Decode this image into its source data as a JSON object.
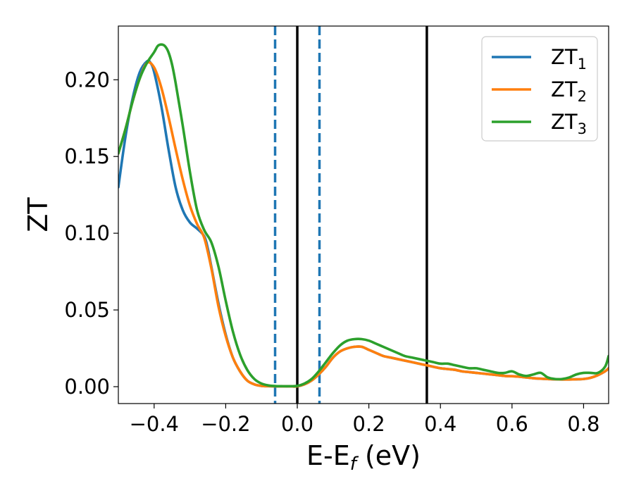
{
  "chart_data": {
    "type": "line",
    "xlabel": "E-E",
    "xlabel_sub": "f",
    "xlabel_unit": " (eV)",
    "ylabel": "ZT",
    "xlim": [
      -0.5,
      0.87
    ],
    "ylim": [
      -0.011,
      0.235
    ],
    "xticks": [
      -0.4,
      -0.2,
      0.0,
      0.2,
      0.4,
      0.6,
      0.8
    ],
    "xtick_labels": [
      "−0.4",
      "−0.2",
      "0.0",
      "0.2",
      "0.4",
      "0.6",
      "0.8"
    ],
    "yticks": [
      0.0,
      0.05,
      0.1,
      0.15,
      0.2
    ],
    "ytick_labels": [
      "0.00",
      "0.05",
      "0.10",
      "0.15",
      "0.20"
    ],
    "grid": false,
    "legend_position": "top-right",
    "vlines": [
      {
        "x": -0.062,
        "style": "dashed",
        "color": "#1f77b4"
      },
      {
        "x": 0.0,
        "style": "solid",
        "color": "#000000"
      },
      {
        "x": 0.062,
        "style": "dashed",
        "color": "#1f77b4"
      },
      {
        "x": 0.362,
        "style": "solid",
        "color": "#000000"
      }
    ],
    "series": [
      {
        "name": "ZT",
        "sub": "1",
        "color": "#1f77b4",
        "x": [
          -0.5,
          -0.48,
          -0.46,
          -0.44,
          -0.42,
          -0.41,
          -0.4,
          -0.38,
          -0.36,
          -0.34,
          -0.32,
          -0.3,
          -0.28,
          -0.26,
          -0.25,
          -0.24,
          -0.22,
          -0.2,
          -0.18,
          -0.16,
          -0.14,
          -0.12,
          -0.1,
          -0.08,
          -0.06,
          -0.04,
          -0.02,
          0.0,
          0.02,
          0.04,
          0.06,
          0.08,
          0.1,
          0.12,
          0.14,
          0.16,
          0.18,
          0.2,
          0.22,
          0.24,
          0.26,
          0.28,
          0.3,
          0.32,
          0.34,
          0.36,
          0.38,
          0.4,
          0.42,
          0.44,
          0.46,
          0.48,
          0.5,
          0.52,
          0.54,
          0.56,
          0.58,
          0.6,
          0.62,
          0.64,
          0.66,
          0.68,
          0.7,
          0.72,
          0.74,
          0.76,
          0.78,
          0.8,
          0.82,
          0.84,
          0.86,
          0.87
        ],
        "values": [
          0.13,
          0.163,
          0.188,
          0.205,
          0.212,
          0.211,
          0.205,
          0.183,
          0.155,
          0.13,
          0.115,
          0.107,
          0.103,
          0.098,
          0.09,
          0.078,
          0.054,
          0.034,
          0.019,
          0.01,
          0.004,
          0.0015,
          0.0005,
          0.0003,
          0.0002,
          0.0002,
          0.0002,
          0.0002,
          0.0015,
          0.004,
          0.008,
          0.013,
          0.019,
          0.023,
          0.025,
          0.026,
          0.026,
          0.024,
          0.022,
          0.02,
          0.019,
          0.018,
          0.017,
          0.016,
          0.015,
          0.014,
          0.013,
          0.012,
          0.0115,
          0.011,
          0.01,
          0.0095,
          0.009,
          0.0085,
          0.008,
          0.0075,
          0.007,
          0.0068,
          0.0065,
          0.006,
          0.0055,
          0.0052,
          0.005,
          0.0048,
          0.0047,
          0.0047,
          0.0048,
          0.005,
          0.0058,
          0.0075,
          0.01,
          0.012
        ]
      },
      {
        "name": "ZT",
        "sub": "2",
        "color": "#ff7f0e",
        "x": [
          -0.5,
          -0.48,
          -0.46,
          -0.44,
          -0.42,
          -0.4,
          -0.38,
          -0.36,
          -0.34,
          -0.32,
          -0.3,
          -0.28,
          -0.26,
          -0.24,
          -0.22,
          -0.2,
          -0.18,
          -0.16,
          -0.14,
          -0.12,
          -0.1,
          -0.08,
          -0.06,
          -0.04,
          -0.02,
          0.0,
          0.02,
          0.04,
          0.06,
          0.08,
          0.1,
          0.12,
          0.14,
          0.16,
          0.18,
          0.2,
          0.22,
          0.24,
          0.26,
          0.28,
          0.3,
          0.32,
          0.34,
          0.36,
          0.38,
          0.4,
          0.42,
          0.44,
          0.46,
          0.48,
          0.5,
          0.52,
          0.54,
          0.56,
          0.58,
          0.6,
          0.62,
          0.64,
          0.66,
          0.68,
          0.7,
          0.72,
          0.74,
          0.76,
          0.78,
          0.8,
          0.82,
          0.84,
          0.86,
          0.87
        ],
        "values": [
          0.152,
          0.168,
          0.186,
          0.201,
          0.211,
          0.208,
          0.195,
          0.176,
          0.155,
          0.135,
          0.118,
          0.106,
          0.097,
          0.077,
          0.052,
          0.033,
          0.019,
          0.01,
          0.004,
          0.0015,
          0.0005,
          0.0003,
          0.0002,
          0.0002,
          0.0002,
          0.0002,
          0.0015,
          0.004,
          0.008,
          0.013,
          0.019,
          0.023,
          0.025,
          0.026,
          0.026,
          0.024,
          0.022,
          0.02,
          0.019,
          0.018,
          0.017,
          0.016,
          0.015,
          0.014,
          0.013,
          0.012,
          0.0115,
          0.011,
          0.01,
          0.0095,
          0.009,
          0.0085,
          0.008,
          0.0075,
          0.007,
          0.0068,
          0.0065,
          0.006,
          0.0055,
          0.0052,
          0.005,
          0.0048,
          0.0047,
          0.0047,
          0.0048,
          0.005,
          0.0058,
          0.0075,
          0.01,
          0.012
        ]
      },
      {
        "name": "ZT",
        "sub": "3",
        "color": "#2ca02c",
        "x": [
          -0.5,
          -0.48,
          -0.46,
          -0.44,
          -0.42,
          -0.4,
          -0.39,
          -0.38,
          -0.37,
          -0.36,
          -0.35,
          -0.34,
          -0.32,
          -0.3,
          -0.28,
          -0.26,
          -0.24,
          -0.22,
          -0.2,
          -0.18,
          -0.16,
          -0.14,
          -0.12,
          -0.1,
          -0.08,
          -0.06,
          -0.04,
          -0.02,
          0.0,
          0.02,
          0.04,
          0.06,
          0.08,
          0.1,
          0.12,
          0.14,
          0.16,
          0.18,
          0.2,
          0.22,
          0.24,
          0.26,
          0.28,
          0.3,
          0.32,
          0.34,
          0.36,
          0.38,
          0.4,
          0.42,
          0.44,
          0.46,
          0.48,
          0.5,
          0.52,
          0.54,
          0.56,
          0.58,
          0.6,
          0.62,
          0.64,
          0.66,
          0.68,
          0.7,
          0.72,
          0.74,
          0.76,
          0.78,
          0.8,
          0.82,
          0.84,
          0.86,
          0.87
        ],
        "values": [
          0.152,
          0.168,
          0.186,
          0.201,
          0.211,
          0.218,
          0.222,
          0.223,
          0.222,
          0.218,
          0.21,
          0.198,
          0.17,
          0.14,
          0.115,
          0.102,
          0.094,
          0.078,
          0.056,
          0.036,
          0.021,
          0.011,
          0.005,
          0.002,
          0.0008,
          0.0004,
          0.0003,
          0.0003,
          0.0005,
          0.002,
          0.005,
          0.01,
          0.016,
          0.022,
          0.027,
          0.03,
          0.031,
          0.031,
          0.03,
          0.028,
          0.026,
          0.024,
          0.022,
          0.02,
          0.019,
          0.018,
          0.017,
          0.016,
          0.015,
          0.015,
          0.014,
          0.013,
          0.012,
          0.012,
          0.011,
          0.01,
          0.009,
          0.009,
          0.01,
          0.008,
          0.007,
          0.008,
          0.009,
          0.006,
          0.005,
          0.005,
          0.006,
          0.008,
          0.009,
          0.009,
          0.009,
          0.013,
          0.02
        ]
      }
    ]
  }
}
